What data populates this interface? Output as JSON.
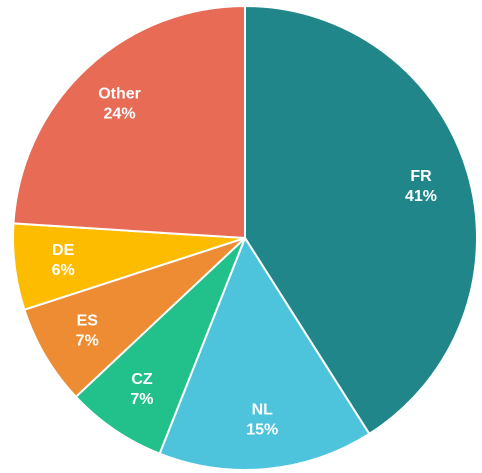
{
  "chart_data": {
    "type": "pie",
    "categories": [
      "FR",
      "NL",
      "CZ",
      "ES",
      "DE",
      "Other"
    ],
    "values": [
      41,
      15,
      7,
      7,
      6,
      24
    ],
    "value_labels": [
      "41%",
      "15%",
      "7%",
      "7%",
      "6%",
      "24%"
    ],
    "colors": [
      "#21868a",
      "#4dc4dc",
      "#22c08a",
      "#ee8c33",
      "#fdbc00",
      "#e86b55"
    ]
  }
}
